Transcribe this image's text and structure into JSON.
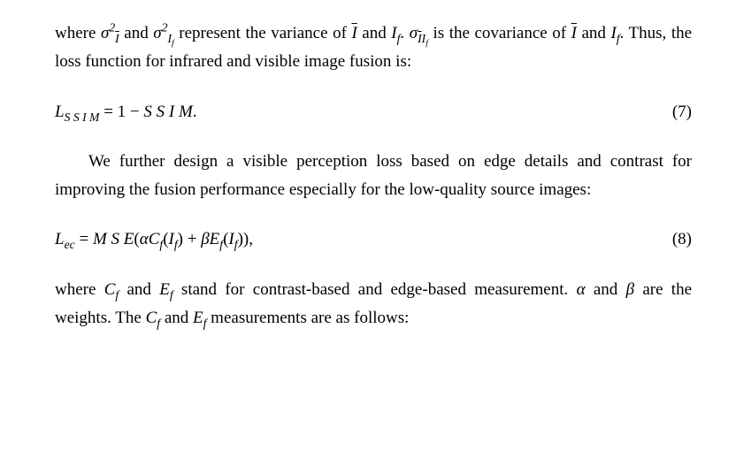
{
  "p1": {
    "seg1": "where ",
    "sigma2_Ibar": "σ",
    "sigma2_Ibar_sup": "2",
    "sigma2_Ibar_sub": "I",
    "and1": " and ",
    "sigma2_If": "σ",
    "sigma2_If_sup": "2",
    "sigma2_If_sub1": "I",
    "sigma2_If_sub2": "f",
    "seg2": " represent the variance of ",
    "Ibar": "I",
    "and2": " and ",
    "I": "I",
    "f": "f",
    "period1": ". ",
    "sigma_IbarIf": "σ",
    "sigma_IbarIf_sub1": "I",
    "sigma_IbarIf_sub2": "I",
    "sigma_IbarIf_sub3": "f",
    "seg3": " is the covariance of ",
    "Ibar2": "I",
    "and3": " and ",
    "I2": "I",
    "f2": "f",
    "seg4": ". Thus, the loss function for infrared and visible image fusion is:"
  },
  "eq7": {
    "L": "L",
    "SSIM_sub": "S S I M",
    "eq": " = 1 − ",
    "SSIM": "S S I M",
    "period": ".",
    "num": "(7)"
  },
  "p2": {
    "text": "We further design a visible perception loss based on edge details and contrast for improving the fusion performance especially for the low-quality source images:"
  },
  "eq8": {
    "L": "L",
    "ec": "ec",
    "eq": " = ",
    "MSE": "M S E",
    "open": "(",
    "alpha": "α",
    "C": "C",
    "f1": "f",
    "open2": "(",
    "I1": "I",
    "f2": "f",
    "close2": ")",
    "plus": " + ",
    "beta": "β",
    "E": "E",
    "f3": "f",
    "open3": "(",
    "I2": "I",
    "f4": "f",
    "close3": ")),",
    "num": "(8)"
  },
  "p3": {
    "seg1": "where ",
    "C": "C",
    "f1": "f",
    "and1": " and ",
    "E": "E",
    "f2": "f",
    "seg2": " stand for contrast-based and edge-based measurement. ",
    "alpha": "α",
    "and2": " and ",
    "beta": "β",
    "seg3": " are the weights. The ",
    "C2": "C",
    "f3": "f",
    "and3": " and ",
    "E2": "E",
    "f4": "f",
    "seg4": " measurements are as follows:"
  }
}
